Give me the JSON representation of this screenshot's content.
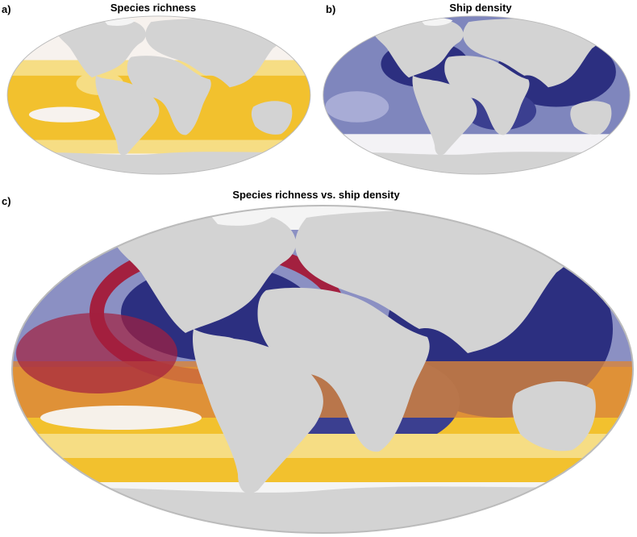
{
  "panels": [
    {
      "label": "a)",
      "title": "Species richness"
    },
    {
      "label": "b)",
      "title": "Ship density"
    },
    {
      "label": "c)",
      "title": "Species richness vs. ship density"
    }
  ]
}
